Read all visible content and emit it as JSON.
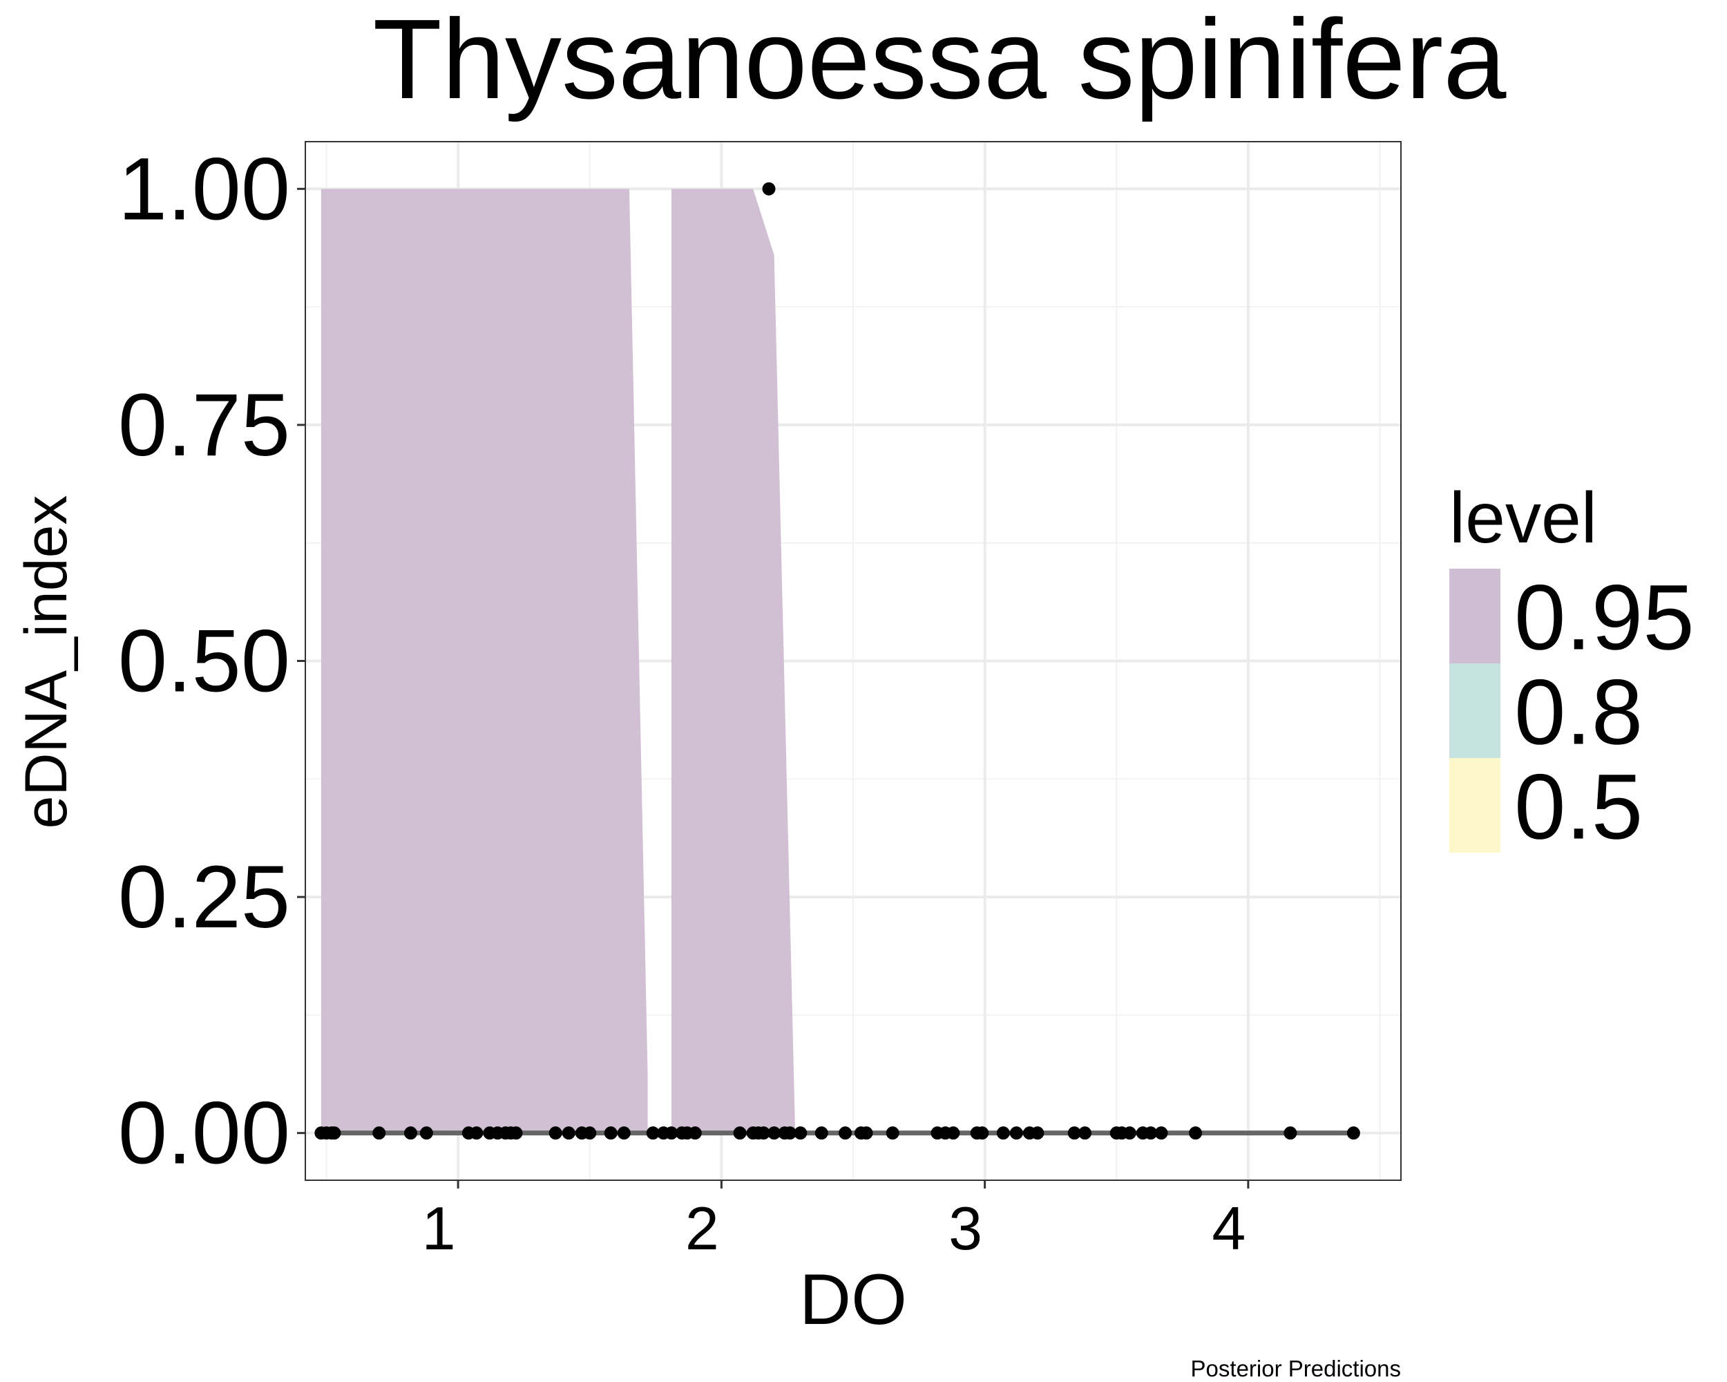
{
  "chart_data": {
    "type": "area",
    "title": "Thysanoessa spinifera",
    "xlabel": "DO",
    "ylabel": "eDNA_index",
    "caption": "Posterior Predictions",
    "xlim": [
      0.42,
      4.58
    ],
    "ylim": [
      -0.05,
      1.05
    ],
    "x_ticks": [
      1,
      2,
      3,
      4
    ],
    "x_tick_labels": [
      "1",
      "2",
      "3",
      "4"
    ],
    "y_ticks": [
      0,
      0.25,
      0.5,
      0.75,
      1
    ],
    "y_tick_labels": [
      "0.00",
      "0.25",
      "0.50",
      "0.75",
      "1.00"
    ],
    "grid": true,
    "legend": {
      "title": "level",
      "placement": "right",
      "entries": [
        {
          "label": "0.95",
          "color": "#cfbdd3"
        },
        {
          "label": "0.8",
          "color": "#c6e3e2"
        },
        {
          "label": "0.5",
          "color": "#fcf8cc"
        }
      ]
    },
    "ribbons": [
      {
        "level": "0.95",
        "color": "#cfbdd3",
        "upper": [
          [
            0.48,
            1.0
          ],
          [
            1.65,
            1.0
          ],
          [
            1.72,
            0.06
          ]
        ],
        "lower": [
          [
            0.48,
            0.0
          ],
          [
            1.72,
            0.0
          ]
        ]
      },
      {
        "level": "0.95",
        "color": "#cfbdd3",
        "upper": [
          [
            1.81,
            1.0
          ],
          [
            2.12,
            1.0
          ],
          [
            2.2,
            0.93
          ],
          [
            2.28,
            0.0
          ]
        ],
        "lower": [
          [
            1.81,
            0.0
          ],
          [
            2.28,
            0.0
          ]
        ]
      }
    ],
    "median_line": {
      "color": "#666666",
      "points": [
        [
          0.5,
          0.0
        ],
        [
          4.42,
          0.0
        ]
      ]
    },
    "points": {
      "color": "#000000",
      "x": [
        0.48,
        0.5,
        0.52,
        0.53,
        0.7,
        0.82,
        0.88,
        1.04,
        1.07,
        1.12,
        1.15,
        1.18,
        1.2,
        1.22,
        1.37,
        1.42,
        1.47,
        1.5,
        1.58,
        1.63,
        1.74,
        1.78,
        1.81,
        1.85,
        1.87,
        1.9,
        2.07,
        2.12,
        2.14,
        2.16,
        2.2,
        2.24,
        2.26,
        2.3,
        2.38,
        2.47,
        2.53,
        2.55,
        2.65,
        2.82,
        2.85,
        2.88,
        2.97,
        2.99,
        3.07,
        3.12,
        3.17,
        3.2,
        3.34,
        3.38,
        3.5,
        3.52,
        3.55,
        3.6,
        3.63,
        3.67,
        3.8,
        4.16,
        4.4,
        2.18
      ],
      "y": [
        0,
        0,
        0,
        0,
        0,
        0,
        0,
        0,
        0,
        0,
        0,
        0,
        0,
        0,
        0,
        0,
        0,
        0,
        0,
        0,
        0,
        0,
        0,
        0,
        0,
        0,
        0,
        0,
        0,
        0,
        0,
        0,
        0,
        0,
        0,
        0,
        0,
        0,
        0,
        0,
        0,
        0,
        0,
        0,
        0,
        0,
        0,
        0,
        0,
        0,
        0,
        0,
        0,
        0,
        0,
        0,
        0,
        0,
        0,
        1.0
      ]
    }
  }
}
